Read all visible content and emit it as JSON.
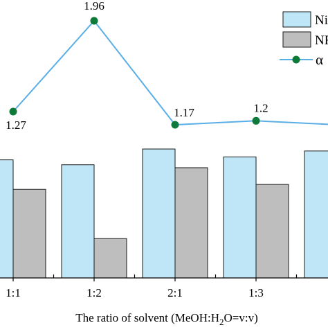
{
  "chart_data": {
    "type": "bar",
    "title": "",
    "categories": [
      "1:1",
      "1:2",
      "2:1",
      "1:3",
      ""
    ],
    "xlabel_parts": [
      "The ratio of solvent (MeOH:H",
      "2",
      "O=v:v)"
    ],
    "series": [
      {
        "name": "Ni",
        "kind": "bar",
        "color": "#bfe6f7",
        "values": [
          120,
          115,
          131,
          123,
          129
        ]
      },
      {
        "name": "NF",
        "kind": "bar",
        "color": "#bebebe",
        "values": [
          90,
          40,
          112,
          95,
          null
        ]
      },
      {
        "name": "α",
        "kind": "line",
        "color": "#5aaee6",
        "marker_color": "#0e7a3a",
        "values": [
          1.27,
          1.96,
          1.17,
          1.2,
          1.17
        ],
        "labels": [
          "1.27",
          "1.96",
          "1.17",
          "1.2",
          ""
        ]
      }
    ],
    "bar_ylim": [
      0,
      180
    ],
    "line_ylim": [
      0.9,
      2.1
    ],
    "legend_position": "top-right",
    "grid": false
  }
}
